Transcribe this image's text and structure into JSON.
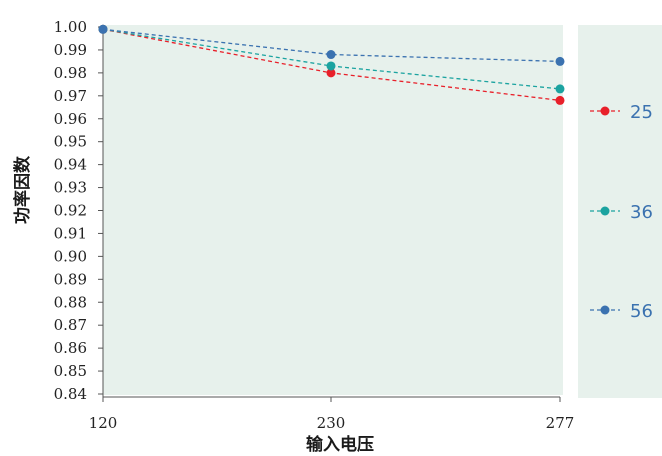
{
  "chart_data": {
    "type": "line",
    "xlabel": "输入电压",
    "ylabel": "功率因数",
    "x": [
      "120",
      "230",
      "277"
    ],
    "yticks": [
      "1.00",
      "0.99",
      "0.98",
      "0.97",
      "0.96",
      "0.95",
      "0.94",
      "0.93",
      "0.92",
      "0.91",
      "0.90",
      "0.89",
      "0.88",
      "0.87",
      "0.86",
      "0.85",
      "0.84"
    ],
    "ylim": [
      0.84,
      1.0
    ],
    "grid": false,
    "legend_position": "right",
    "series": [
      {
        "name": "25",
        "color": "#e8202a",
        "values": [
          0.999,
          0.98,
          0.968
        ]
      },
      {
        "name": "36",
        "color": "#1ba3a0",
        "values": [
          0.999,
          0.983,
          0.973
        ]
      },
      {
        "name": "56",
        "color": "#3b72b0",
        "values": [
          0.999,
          0.988,
          0.985
        ]
      }
    ]
  },
  "colors": {
    "plot_background": "#e7f1ec",
    "legend_background": "#e7f1ec",
    "axis": "#555555"
  }
}
